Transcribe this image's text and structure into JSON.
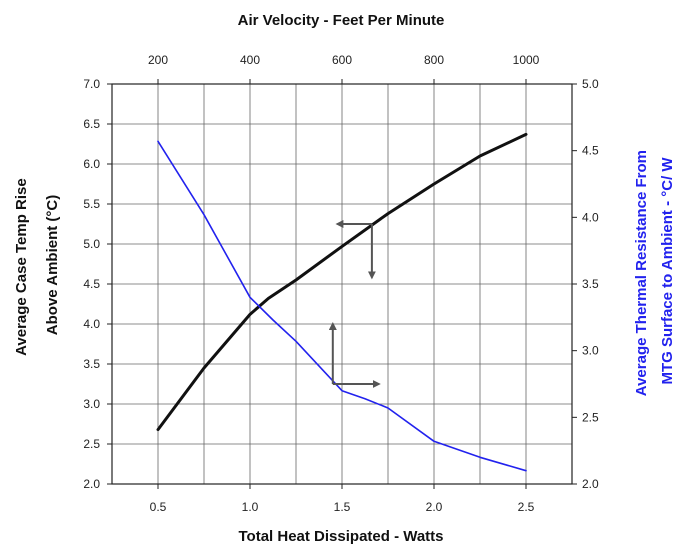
{
  "chart_data": {
    "type": "line",
    "title": "Air Velocity - Feet Per Minute",
    "xlabel": "Total Heat Dissipated - Watts",
    "ylabel_left": [
      "Average Case Temp Rise",
      "Above Ambient (°C)"
    ],
    "ylabel_right": [
      "Average Thermal Resistance From",
      "MTG  Surface to Ambient - °C/ W"
    ],
    "x_bottom": {
      "min": 0.25,
      "max": 2.75,
      "ticks": [
        0.5,
        1.0,
        1.5,
        2.0,
        2.5
      ],
      "tick_labels": [
        "0.5",
        "1.0",
        "1.5",
        "2.0",
        "2.5"
      ],
      "grid_step": 0.25
    },
    "x_top": {
      "min": 100,
      "max": 1100,
      "ticks": [
        200,
        400,
        600,
        800,
        1000
      ],
      "tick_labels": [
        "200",
        "400",
        "600",
        "800",
        "1000"
      ]
    },
    "y_left": {
      "min": 2.0,
      "max": 7.0,
      "ticks": [
        2.0,
        2.5,
        3.0,
        3.5,
        4.0,
        4.5,
        5.0,
        5.5,
        6.0,
        6.5,
        7.0
      ],
      "tick_labels": [
        "2.0",
        "2.5",
        "3.0",
        "3.5",
        "4.0",
        "4.5",
        "5.0",
        "5.5",
        "6.0",
        "6.5",
        "7.0"
      ]
    },
    "y_right": {
      "min": 2.0,
      "max": 5.0,
      "ticks": [
        2.0,
        2.5,
        3.0,
        3.5,
        4.0,
        4.5,
        5.0
      ],
      "tick_labels": [
        "2.0",
        "2.5",
        "3.0",
        "3.5",
        "4.0",
        "4.5",
        "5.0"
      ]
    },
    "grid": true,
    "series": [
      {
        "axis": "x_bottom/y_left",
        "color": "#111111",
        "x": [
          0.5,
          0.75,
          1.0,
          1.1,
          1.25,
          1.5,
          1.75,
          2.0,
          2.25,
          2.5
        ],
        "y": [
          2.68,
          3.45,
          4.12,
          4.32,
          4.55,
          4.97,
          5.38,
          5.75,
          6.1,
          6.37
        ]
      },
      {
        "axis": "x_top/y_right",
        "color": "#2222ee",
        "x": [
          200,
          300,
          400,
          450,
          500,
          600,
          650,
          700,
          800,
          900,
          1000
        ],
        "y": [
          4.57,
          4.02,
          3.4,
          3.23,
          3.07,
          2.7,
          2.64,
          2.57,
          2.32,
          2.2,
          2.1
        ]
      }
    ],
    "annotations": [
      {
        "type": "arrow",
        "axes": "x_top/y_right",
        "from": [
          665,
          3.95
        ],
        "to": [
          590,
          3.95
        ]
      },
      {
        "type": "arrow",
        "axes": "x_top/y_right",
        "from": [
          665,
          3.95
        ],
        "to": [
          665,
          3.55
        ]
      },
      {
        "type": "arrow",
        "axes": "x_top/y_right",
        "from": [
          580,
          2.75
        ],
        "to": [
          580,
          3.2
        ]
      },
      {
        "type": "arrow",
        "axes": "x_top/y_right",
        "from": [
          580,
          2.75
        ],
        "to": [
          680,
          2.75
        ]
      }
    ]
  }
}
